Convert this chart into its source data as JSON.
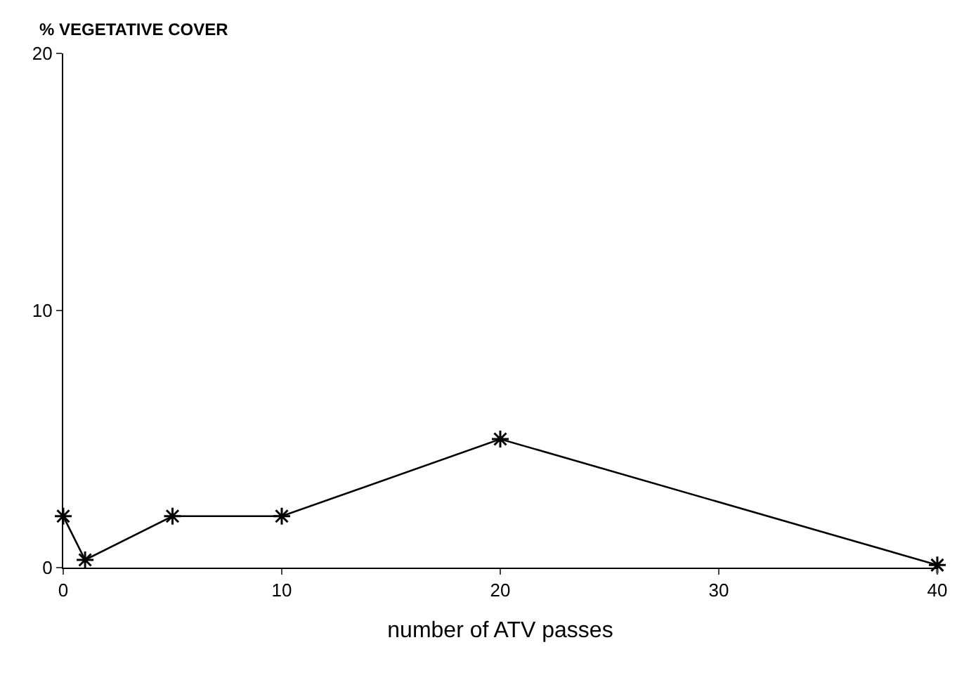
{
  "chart_data": {
    "type": "line",
    "ylabel": "% VEGETATIVE COVER",
    "xlabel": "number of ATV passes",
    "x": [
      0,
      1,
      5,
      10,
      20,
      40
    ],
    "series": [
      {
        "color": "#000000",
        "values": [
          2,
          0.3,
          2,
          2,
          5,
          0.1
        ]
      }
    ],
    "xlim": [
      0,
      40
    ],
    "xticks": [
      0,
      10,
      20,
      30,
      40
    ],
    "ylim": [
      0,
      20
    ],
    "yticks": [
      0,
      10,
      20
    ],
    "marker": "cross",
    "line_style": "solid"
  }
}
